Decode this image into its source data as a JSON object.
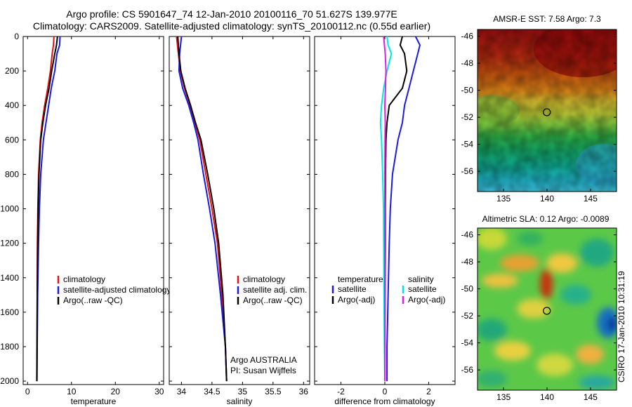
{
  "header": {
    "title_line1": "Argo profile: CS 5901647_74 12-Jan-2010 20100116_70 51.627S 139.977E",
    "title_line2": "Climatology: CARS2009. Satellite-adjusted climatology: synTS_20100112.nc (0.55d earlier)"
  },
  "side_label": "CSIRO 17-Jan-2010 10:31:19",
  "colors": {
    "climatology": "#e81010",
    "satellite": "#1a1ae6",
    "argo": "#000000",
    "satellite_salinity": "#00e6e6",
    "argo_salinity_adj": "#e020e0"
  },
  "chart_data": [
    {
      "type": "line",
      "id": "temperature",
      "xlabel": "temperature",
      "ylabel": "",
      "xlim": [
        -1,
        31
      ],
      "ylim": [
        2020,
        0
      ],
      "xticks": [
        0,
        10,
        20,
        30
      ],
      "yticks": [
        0,
        200,
        400,
        600,
        800,
        1000,
        1200,
        1400,
        1600,
        1800,
        2000
      ],
      "legend": {
        "placement": "lower-right",
        "entries": [
          {
            "label": "climatology",
            "color": "#e81010"
          },
          {
            "label": "satellite-adjusted climatology",
            "color": "#1a1ae6"
          },
          {
            "label": "Argo(..raw -QC)",
            "color": "#000000"
          }
        ]
      },
      "series": [
        {
          "name": "climatology",
          "color": "#e81010",
          "x": [
            6.0,
            5.9,
            5.6,
            5.2,
            4.6,
            3.9,
            3.3,
            2.9,
            2.5,
            2.35,
            2.25,
            2.2,
            2.15,
            2.1
          ],
          "y": [
            0,
            50,
            100,
            200,
            300,
            400,
            500,
            600,
            800,
            1000,
            1200,
            1500,
            1800,
            2000
          ]
        },
        {
          "name": "satellite-adjusted climatology",
          "color": "#1a1ae6",
          "x": [
            7.4,
            7.3,
            6.7,
            6.2,
            5.4,
            4.8,
            4.2,
            3.6,
            3.0,
            2.7,
            2.5,
            2.3,
            2.2,
            2.15
          ],
          "y": [
            0,
            50,
            100,
            200,
            300,
            400,
            500,
            600,
            800,
            1000,
            1200,
            1500,
            1800,
            2000
          ]
        },
        {
          "name": "Argo(..raw -QC)",
          "color": "#000000",
          "x": [
            6.8,
            6.6,
            6.2,
            5.5,
            4.9,
            4.1,
            3.5,
            3.0,
            2.6,
            2.4,
            2.3,
            2.2,
            2.15,
            2.1
          ],
          "y": [
            0,
            50,
            100,
            200,
            300,
            400,
            500,
            600,
            800,
            1000,
            1200,
            1500,
            1800,
            2000
          ]
        }
      ]
    },
    {
      "type": "line",
      "id": "salinity",
      "xlabel": "salinity",
      "ylabel": "",
      "xlim": [
        33.8,
        36.1
      ],
      "ylim": [
        2020,
        0
      ],
      "xticks": [
        34,
        34.5,
        35,
        35.5,
        36
      ],
      "xticklabels": [
        "34",
        "34.5",
        "35",
        "35.5",
        "36"
      ],
      "legend": {
        "placement": "lower-right",
        "entries": [
          {
            "label": "climatology",
            "color": "#e81010"
          },
          {
            "label": "satellite adj. clim.",
            "color": "#1a1ae6"
          },
          {
            "label": "Argo(..raw -QC)",
            "color": "#000000"
          }
        ]
      },
      "annotation": [
        "Argo AUSTRALIA",
        "PI: Susan Wijffels"
      ],
      "series": [
        {
          "name": "climatology",
          "color": "#e81010",
          "x": [
            33.92,
            33.95,
            33.98,
            34.05,
            34.14,
            34.22,
            34.3,
            34.4,
            34.5,
            34.59,
            34.66,
            34.72,
            34.74
          ],
          "y": [
            0,
            100,
            200,
            300,
            400,
            500,
            600,
            800,
            1000,
            1200,
            1500,
            1800,
            2000
          ]
        },
        {
          "name": "satellite adj. clim.",
          "color": "#1a1ae6",
          "x": [
            34.0,
            33.97,
            33.96,
            34.02,
            34.12,
            34.2,
            34.27,
            34.36,
            34.46,
            34.55,
            34.64,
            34.72,
            34.74
          ],
          "y": [
            0,
            100,
            200,
            300,
            400,
            500,
            600,
            800,
            1000,
            1200,
            1500,
            1800,
            2000
          ]
        },
        {
          "name": "Argo(..raw -QC)",
          "color": "#000000",
          "x": [
            33.94,
            33.96,
            33.99,
            34.06,
            34.15,
            34.23,
            34.32,
            34.43,
            34.53,
            34.61,
            34.68,
            34.72,
            34.74
          ],
          "y": [
            0,
            100,
            200,
            300,
            400,
            500,
            600,
            800,
            1000,
            1200,
            1500,
            1800,
            2000
          ]
        }
      ]
    },
    {
      "type": "line",
      "id": "difference",
      "xlabel": "difference from climatology",
      "ylabel": "",
      "xlim": [
        -3.2,
        3.2
      ],
      "ylim": [
        2020,
        0
      ],
      "xticks": [
        -2,
        0,
        2
      ],
      "legend": {
        "placement": "lower-center",
        "headers": [
          "temperature",
          "salinity"
        ],
        "entries": [
          {
            "label": "satellite",
            "color": "#1a1ae6",
            "column": 0
          },
          {
            "label": "Argo(-adj)",
            "color": "#000000",
            "column": 0
          },
          {
            "label": "satellite",
            "color": "#00e6e6",
            "column": 1
          },
          {
            "label": "Argo(-adj)",
            "color": "#e020e0",
            "column": 1
          }
        ]
      },
      "series": [
        {
          "name": "temperature satellite",
          "color": "#1a1ae6",
          "x": [
            1.4,
            1.6,
            1.5,
            1.3,
            1.1,
            0.9,
            0.8,
            0.6,
            0.35,
            0.25,
            0.2,
            0.15,
            0.1,
            0.1
          ],
          "y": [
            0,
            50,
            100,
            200,
            300,
            400,
            500,
            600,
            800,
            1000,
            1200,
            1500,
            1800,
            2000
          ]
        },
        {
          "name": "temperature Argo(-adj)",
          "color": "#000000",
          "x": [
            0.8,
            0.7,
            0.9,
            1.0,
            0.8,
            0.2,
            0.1,
            0.05,
            0.03,
            0.02,
            0.02,
            0.01,
            0.0,
            0.0
          ],
          "y": [
            0,
            50,
            100,
            200,
            300,
            400,
            500,
            600,
            800,
            1000,
            1200,
            1500,
            1800,
            2000
          ]
        },
        {
          "name": "salinity satellite",
          "color": "#00e6e6",
          "x": [
            0.1,
            0.15,
            0.3,
            0.1,
            -0.05,
            -0.15,
            -0.2,
            -0.15,
            -0.1,
            -0.06,
            -0.05,
            -0.04,
            -0.02,
            0.0
          ],
          "y": [
            0,
            50,
            100,
            200,
            300,
            400,
            500,
            600,
            800,
            1000,
            1200,
            1500,
            1800,
            2000
          ]
        },
        {
          "name": "salinity Argo(-adj)",
          "color": "#e020e0",
          "x": [
            -0.05,
            -0.02,
            0.02,
            0.05,
            0.03,
            0.0,
            0.02,
            0.01,
            0.0,
            0.0,
            0.0,
            0.0,
            0.0,
            0.0
          ],
          "y": [
            0,
            50,
            100,
            200,
            300,
            400,
            500,
            600,
            800,
            1000,
            1200,
            1500,
            1800,
            2000
          ]
        }
      ]
    },
    {
      "type": "heatmap",
      "id": "sst-map",
      "title": "AMSR-E SST: 7.58 Argo: 7.3",
      "xlim": [
        132,
        148
      ],
      "ylim": [
        -57.5,
        -45.5
      ],
      "xticks": [
        135,
        140,
        145
      ],
      "yticks": [
        -46,
        -48,
        -50,
        -52,
        -54,
        -56
      ],
      "marker": {
        "lon": 139.977,
        "lat": -51.627
      }
    },
    {
      "type": "heatmap",
      "id": "sla-map",
      "title": "Altimetric SLA: 0.12 Argo: -0.0089",
      "xlim": [
        132,
        148
      ],
      "ylim": [
        -57.5,
        -45.5
      ],
      "xticks": [
        135,
        140,
        145
      ],
      "yticks": [
        -46,
        -48,
        -50,
        -52,
        -54,
        -56
      ],
      "marker": {
        "lon": 139.977,
        "lat": -51.627
      }
    }
  ]
}
